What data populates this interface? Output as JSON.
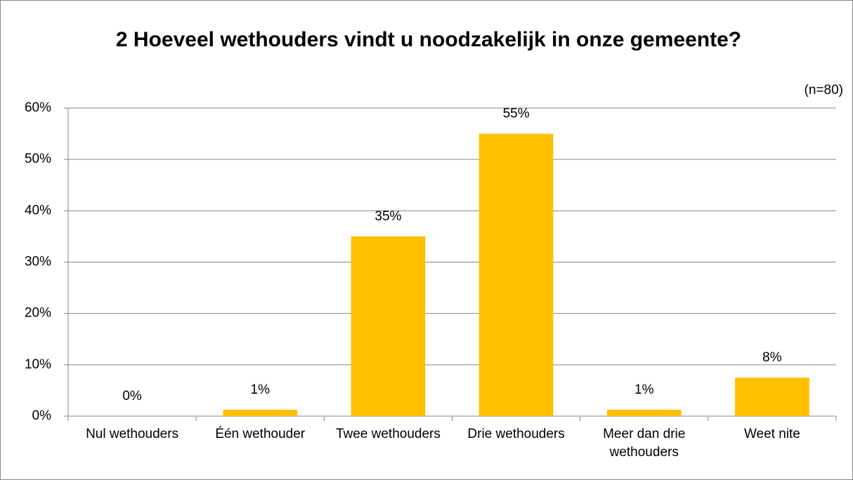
{
  "chart_data": {
    "type": "bar",
    "title": "2 Hoeveel wethouders vindt u noodzakelijk in onze gemeente?",
    "annotation": "(n=80)",
    "categories": [
      "Nul wethouders",
      "Één wethouder",
      "Twee wethouders",
      "Drie wethouders",
      "Meer dan drie wethouders",
      "Weet nite"
    ],
    "values": [
      0,
      1.25,
      35,
      55,
      1.25,
      7.5
    ],
    "value_labels": [
      "0%",
      "1%",
      "35%",
      "55%",
      "1%",
      "8%"
    ],
    "color": "#ffc000",
    "ylim": [
      0,
      60
    ],
    "yticks": [
      {
        "value": 0,
        "label": "0%"
      },
      {
        "value": 10,
        "label": "10%"
      },
      {
        "value": 20,
        "label": "20%"
      },
      {
        "value": 30,
        "label": "30%"
      },
      {
        "value": 40,
        "label": "40%"
      },
      {
        "value": 50,
        "label": "50%"
      },
      {
        "value": 60,
        "label": "60%"
      }
    ],
    "grid": true
  }
}
